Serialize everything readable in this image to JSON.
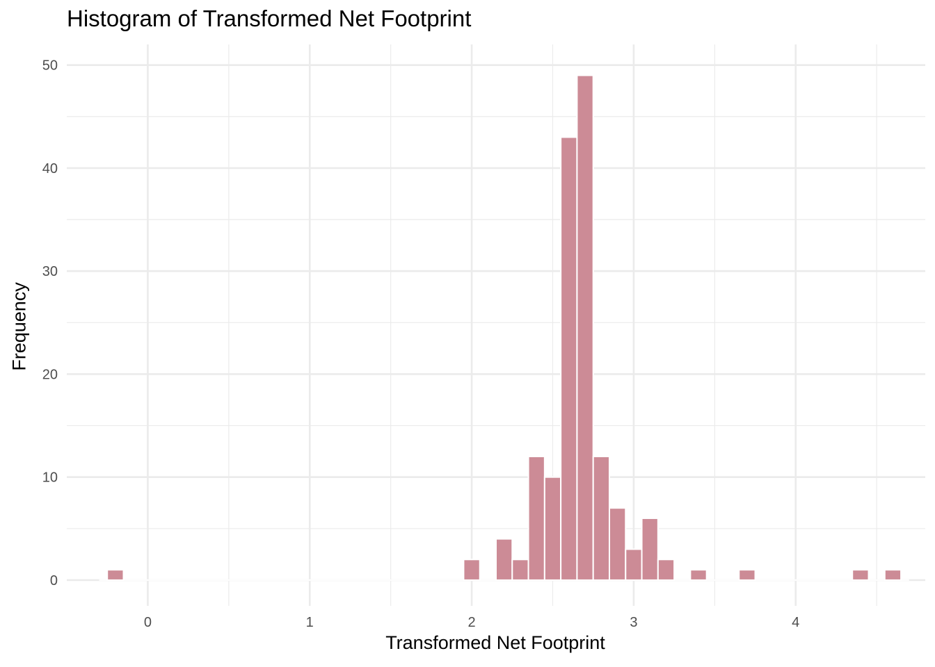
{
  "chart_data": {
    "type": "bar",
    "title": "Histogram of Transformed Net Footprint",
    "xlabel": "Transformed Net Footprint",
    "ylabel": "Frequency",
    "xlim": [
      -0.5,
      4.8
    ],
    "ylim": [
      -2.5,
      52
    ],
    "x_ticks": [
      0,
      1,
      2,
      3,
      4
    ],
    "x_tick_labels": [
      "0",
      "1",
      "2",
      "3",
      "4"
    ],
    "y_ticks": [
      0,
      10,
      20,
      30,
      40,
      50
    ],
    "y_tick_labels": [
      "0",
      "10",
      "20",
      "30",
      "40",
      "50"
    ],
    "bin_width": 0.1,
    "bar_color": "#cc8b96",
    "bar_outline_color": "#ffffff",
    "grid_color": "#ebebeb",
    "grid": true,
    "legend": "none",
    "bins": [
      {
        "x": -0.2,
        "count": 1
      },
      {
        "x": 2.0,
        "count": 2
      },
      {
        "x": 2.2,
        "count": 4
      },
      {
        "x": 2.3,
        "count": 2
      },
      {
        "x": 2.4,
        "count": 12
      },
      {
        "x": 2.5,
        "count": 10
      },
      {
        "x": 2.6,
        "count": 43
      },
      {
        "x": 2.7,
        "count": 49
      },
      {
        "x": 2.8,
        "count": 12
      },
      {
        "x": 2.9,
        "count": 7
      },
      {
        "x": 3.0,
        "count": 3
      },
      {
        "x": 3.1,
        "count": 6
      },
      {
        "x": 3.2,
        "count": 2
      },
      {
        "x": 3.4,
        "count": 1
      },
      {
        "x": 3.7,
        "count": 1
      },
      {
        "x": 4.4,
        "count": 1
      },
      {
        "x": 4.6,
        "count": 1
      }
    ],
    "zero_bins_x_range": [
      -0.3,
      4.7
    ]
  }
}
